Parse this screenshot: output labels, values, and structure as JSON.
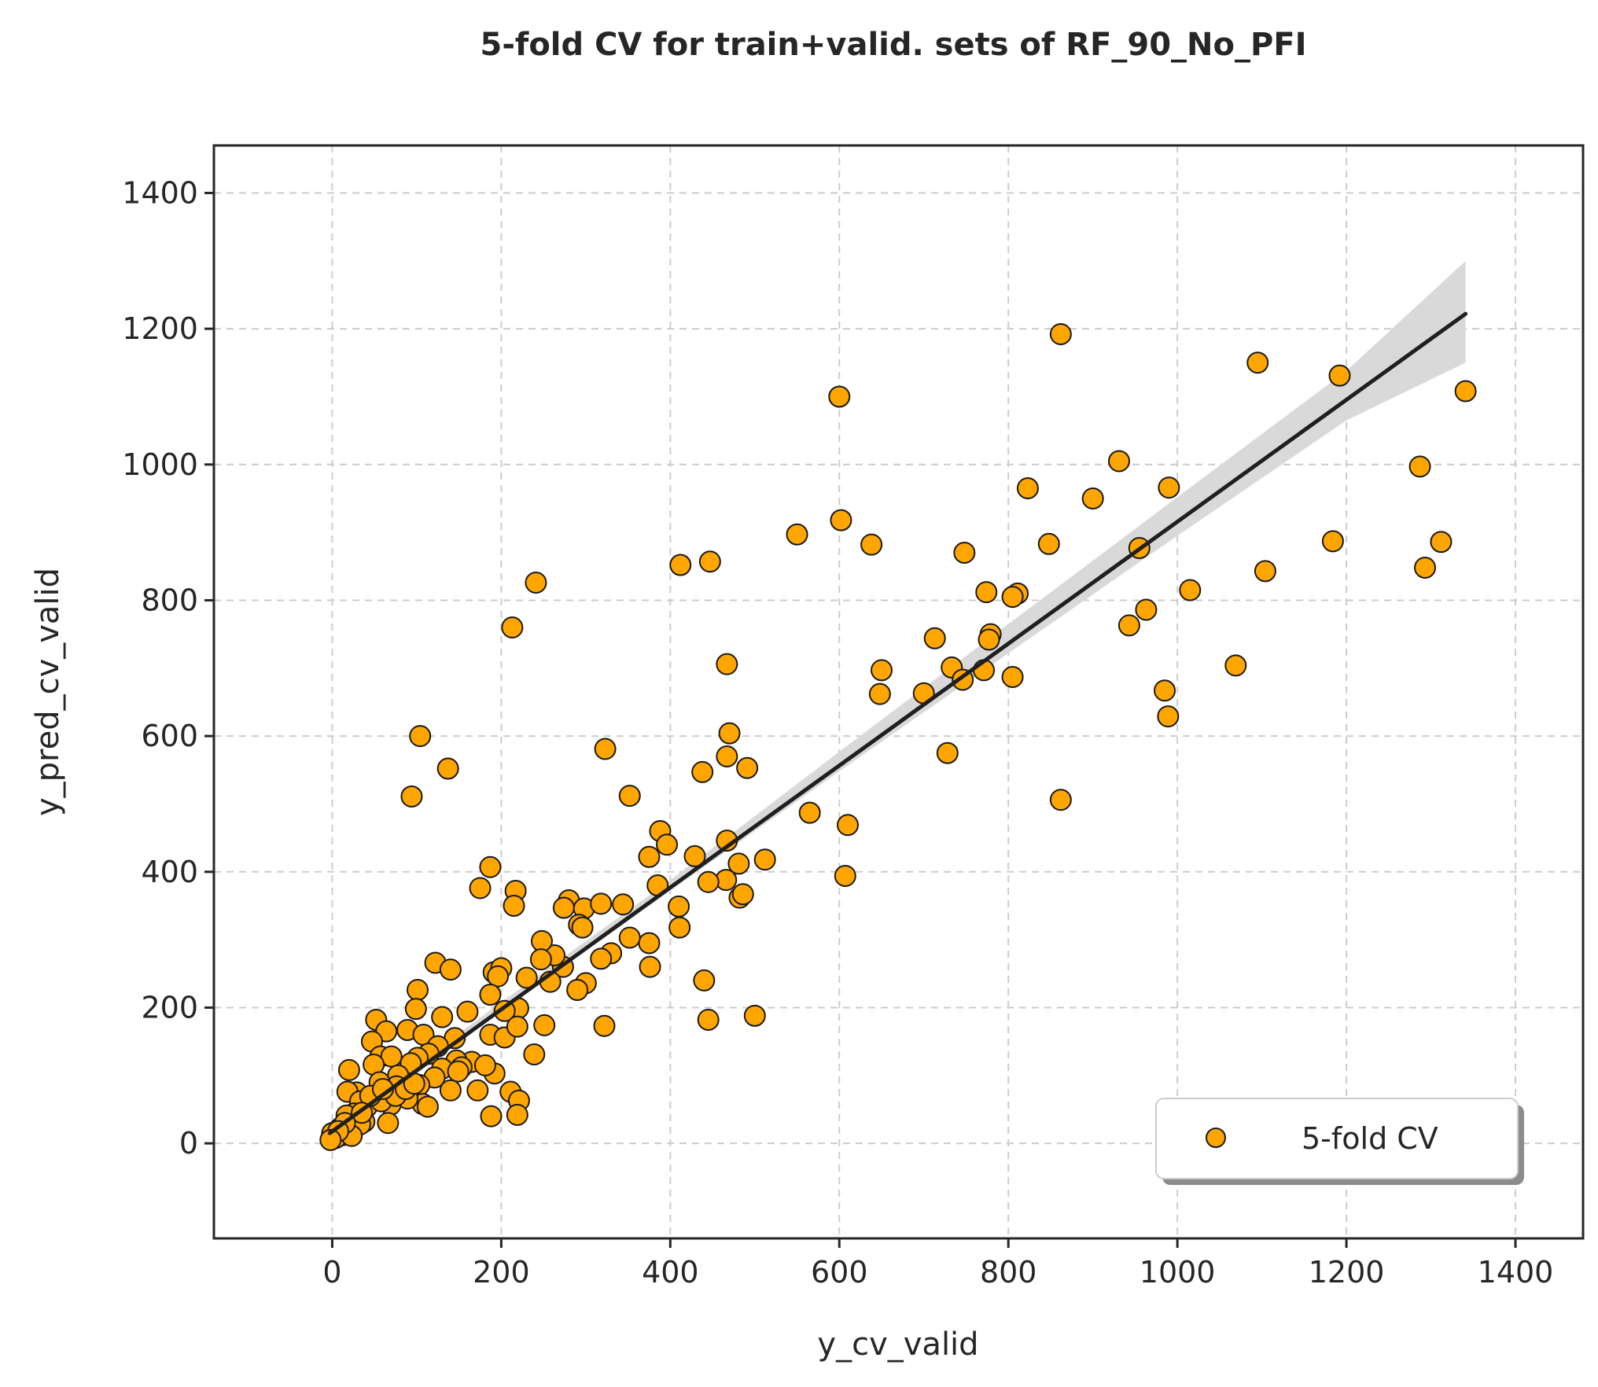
{
  "chart_data": {
    "type": "scatter",
    "title": "5-fold CV for train+valid. sets of RF_90_No_PFI",
    "xlabel": "y_cv_valid",
    "ylabel": "y_pred_cv_valid",
    "xlim": [
      -140,
      1480
    ],
    "ylim": [
      -140,
      1470
    ],
    "xticks": [
      0,
      200,
      400,
      600,
      800,
      1000,
      1200,
      1400
    ],
    "yticks": [
      0,
      200,
      400,
      600,
      800,
      1000,
      1200,
      1400
    ],
    "grid": true,
    "legend_position": "lower-right",
    "colors": {
      "marker_fill": "#FFA500",
      "marker_edge": "#1a1a1a",
      "fit_line": "#1f1f1f",
      "ci_band": "#d9d9d9",
      "grid": "#cccccc"
    },
    "series": [
      {
        "name": "5-fold CV",
        "marker": "circle",
        "points": [
          [
            1192,
            1131
          ],
          [
            1095,
            1150
          ],
          [
            862,
            1192
          ],
          [
            600,
            1100
          ],
          [
            1341,
            1108
          ],
          [
            1287,
            997
          ],
          [
            931,
            1005
          ],
          [
            990,
            966
          ],
          [
            823,
            965
          ],
          [
            900,
            950
          ],
          [
            602,
            918
          ],
          [
            550,
            897
          ],
          [
            638,
            882
          ],
          [
            848,
            883
          ],
          [
            955,
            877
          ],
          [
            1184,
            887
          ],
          [
            1312,
            886
          ],
          [
            1293,
            848
          ],
          [
            748,
            870
          ],
          [
            412,
            852
          ],
          [
            447,
            857
          ],
          [
            241,
            826
          ],
          [
            1015,
            815
          ],
          [
            1104,
            843
          ],
          [
            774,
            812
          ],
          [
            811,
            810
          ],
          [
            805,
            805
          ],
          [
            963,
            786
          ],
          [
            943,
            763
          ],
          [
            213,
            760
          ],
          [
            779,
            750
          ],
          [
            777,
            742
          ],
          [
            713,
            744
          ],
          [
            467,
            706
          ],
          [
            1069,
            704
          ],
          [
            733,
            701
          ],
          [
            771,
            697
          ],
          [
            650,
            697
          ],
          [
            805,
            687
          ],
          [
            746,
            683
          ],
          [
            648,
            662
          ],
          [
            700,
            663
          ],
          [
            985,
            667
          ],
          [
            989,
            629
          ],
          [
            104,
            600
          ],
          [
            323,
            581
          ],
          [
            728,
            575
          ],
          [
            470,
            604
          ],
          [
            467,
            570
          ],
          [
            491,
            553
          ],
          [
            137,
            552
          ],
          [
            438,
            547
          ],
          [
            94,
            511
          ],
          [
            352,
            512
          ],
          [
            862,
            506
          ],
          [
            565,
            487
          ],
          [
            610,
            469
          ],
          [
            388,
            460
          ],
          [
            396,
            440
          ],
          [
            467,
            446
          ],
          [
            375,
            422
          ],
          [
            429,
            423
          ],
          [
            385,
            380
          ],
          [
            481,
            412
          ],
          [
            187,
            407
          ],
          [
            466,
            388
          ],
          [
            445,
            385
          ],
          [
            482,
            362
          ],
          [
            486,
            367
          ],
          [
            512,
            418
          ],
          [
            607,
            394
          ],
          [
            175,
            376
          ],
          [
            217,
            372
          ],
          [
            215,
            350
          ],
          [
            410,
            349
          ],
          [
            411,
            318
          ],
          [
            280,
            358
          ],
          [
            274,
            347
          ],
          [
            298,
            346
          ],
          [
            292,
            322
          ],
          [
            318,
            353
          ],
          [
            344,
            352
          ],
          [
            375,
            295
          ],
          [
            352,
            303
          ],
          [
            296,
            318
          ],
          [
            330,
            280
          ],
          [
            318,
            272
          ],
          [
            300,
            236
          ],
          [
            290,
            226
          ],
          [
            273,
            260
          ],
          [
            263,
            277
          ],
          [
            248,
            298
          ],
          [
            258,
            238
          ],
          [
            247,
            271
          ],
          [
            230,
            244
          ],
          [
            376,
            260
          ],
          [
            122,
            266
          ],
          [
            140,
            256
          ],
          [
            191,
            252
          ],
          [
            200,
            258
          ],
          [
            196,
            246
          ],
          [
            101,
            226
          ],
          [
            440,
            240
          ],
          [
            220,
            199
          ],
          [
            204,
            195
          ],
          [
            187,
            219
          ],
          [
            160,
            194
          ],
          [
            130,
            186
          ],
          [
            99,
            198
          ],
          [
            52,
            182
          ],
          [
            89,
            167
          ],
          [
            64,
            165
          ],
          [
            108,
            160
          ],
          [
            47,
            150
          ],
          [
            57,
            128
          ],
          [
            20,
            108
          ],
          [
            500,
            188
          ],
          [
            445,
            182
          ],
          [
            322,
            173
          ],
          [
            251,
            174
          ],
          [
            239,
            131
          ],
          [
            187,
            160
          ],
          [
            204,
            156
          ],
          [
            219,
            172
          ],
          [
            145,
            155
          ],
          [
            165,
            120
          ],
          [
            147,
            122
          ],
          [
            125,
            143
          ],
          [
            114,
            132
          ],
          [
            101,
            126
          ],
          [
            93,
            118
          ],
          [
            70,
            128
          ],
          [
            49,
            116
          ],
          [
            153,
            112
          ],
          [
            130,
            110
          ],
          [
            78,
            100
          ],
          [
            121,
            97
          ],
          [
            103,
            86
          ],
          [
            76,
            84
          ],
          [
            56,
            90
          ],
          [
            29,
            75
          ],
          [
            18,
            76
          ],
          [
            172,
            78
          ],
          [
            211,
            76
          ],
          [
            221,
            63
          ],
          [
            192,
            103
          ],
          [
            181,
            115
          ],
          [
            149,
            106
          ],
          [
            107,
            58
          ],
          [
            140,
            78
          ],
          [
            113,
            54
          ],
          [
            89,
            66
          ],
          [
            69,
            57
          ],
          [
            51,
            64
          ],
          [
            41,
            54
          ],
          [
            33,
            62
          ],
          [
            26,
            44
          ],
          [
            17,
            41
          ],
          [
            9,
            22
          ],
          [
            188,
            40
          ],
          [
            219,
            42
          ],
          [
            66,
            30
          ],
          [
            38,
            32
          ],
          [
            21,
            18
          ],
          [
            12,
            12
          ],
          [
            4,
            8
          ],
          [
            0,
            15
          ],
          [
            33,
            28
          ],
          [
            23,
            11
          ],
          [
            58,
            62
          ],
          [
            75,
            70
          ],
          [
            87,
            80
          ],
          [
            97,
            88
          ],
          [
            45,
            70
          ],
          [
            60,
            80
          ],
          [
            35,
            45
          ],
          [
            15,
            30
          ],
          [
            7,
            18
          ],
          [
            -2,
            5
          ]
        ]
      }
    ],
    "fit_line": {
      "x": [
        -3,
        1341
      ],
      "y": [
        15,
        1222
      ]
    },
    "ci_band": {
      "x": [
        -3,
        200,
        400,
        500,
        600,
        800,
        1000,
        1200,
        1341
      ],
      "lower": [
        6,
        195,
        372,
        460,
        548,
        722,
        895,
        1065,
        1150
      ],
      "upper": [
        22,
        208,
        388,
        482,
        577,
        765,
        952,
        1138,
        1300
      ]
    },
    "legend": {
      "label": "5-fold CV"
    }
  }
}
